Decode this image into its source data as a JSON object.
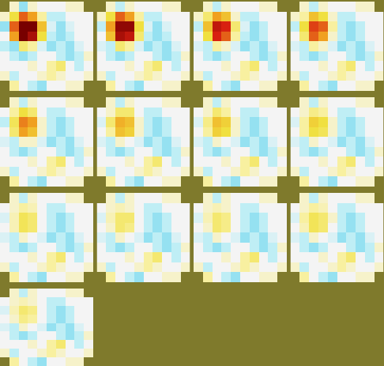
{
  "chart_data": {
    "type": "heatmap",
    "tick_labels": false,
    "zlim": [
      -1,
      1
    ],
    "panels": [
      [
        [
          null,
          0.1,
          -0.3,
          0.1,
          0,
          0,
          0,
          0.1,
          0.1,
          null
        ],
        [
          0.1,
          0.4,
          0.7,
          0.6,
          0.2,
          -0.2,
          -0.2,
          0,
          0,
          0
        ],
        [
          -0.3,
          0.7,
          1.0,
          1.0,
          0.5,
          -0.1,
          -0.3,
          -0.1,
          0,
          0
        ],
        [
          0,
          0.6,
          1.0,
          0.9,
          0.4,
          -0.2,
          -0.3,
          -0.2,
          0,
          0
        ],
        [
          -0.2,
          -0.3,
          0.3,
          0.2,
          -0.1,
          -0.3,
          -0.2,
          -0.3,
          -0.1,
          0
        ],
        [
          0,
          -0.2,
          -0.3,
          -0.2,
          0,
          0,
          -0.2,
          -0.3,
          -0.2,
          0.1
        ],
        [
          0,
          0,
          0,
          0.1,
          0,
          0.2,
          0.3,
          0,
          -0.2,
          0
        ],
        [
          0.1,
          -0.2,
          0,
          0,
          0.1,
          0.2,
          0.1,
          0,
          0,
          0.1
        ],
        [
          null,
          0.2,
          0,
          -0.2,
          -0.3,
          0,
          0,
          0.1,
          0.1,
          null
        ]
      ],
      [
        [
          null,
          0.1,
          -0.2,
          0.1,
          0,
          0,
          0,
          0.1,
          0.1,
          null
        ],
        [
          0.1,
          0.4,
          0.7,
          0.6,
          0.2,
          -0.2,
          -0.2,
          0,
          0,
          0
        ],
        [
          -0.2,
          0.6,
          0.95,
          0.95,
          0.4,
          -0.1,
          -0.3,
          -0.1,
          0,
          0
        ],
        [
          0,
          0.5,
          0.9,
          0.85,
          0.3,
          -0.2,
          -0.3,
          -0.2,
          0,
          0
        ],
        [
          -0.1,
          -0.2,
          0.3,
          0.2,
          -0.1,
          -0.3,
          -0.2,
          -0.3,
          -0.1,
          0
        ],
        [
          0,
          -0.2,
          -0.3,
          -0.2,
          0,
          0,
          -0.2,
          -0.3,
          -0.2,
          0.1
        ],
        [
          0,
          0,
          0,
          0.1,
          0,
          0.2,
          0.3,
          0,
          -0.2,
          0
        ],
        [
          0.1,
          -0.2,
          0,
          0,
          0.1,
          0.2,
          0.1,
          0,
          0,
          0.1
        ],
        [
          null,
          0.2,
          0,
          -0.2,
          -0.3,
          0,
          0,
          0.1,
          0.1,
          null
        ]
      ],
      [
        [
          null,
          0.1,
          -0.2,
          0.1,
          0,
          0,
          0,
          0.1,
          0.1,
          null
        ],
        [
          0.1,
          0.3,
          0.6,
          0.5,
          0.1,
          -0.2,
          -0.2,
          0,
          0,
          0
        ],
        [
          -0.2,
          0.5,
          0.85,
          0.8,
          0.3,
          -0.1,
          -0.3,
          -0.2,
          0,
          0
        ],
        [
          0,
          0.4,
          0.8,
          0.7,
          0.2,
          -0.2,
          -0.3,
          -0.2,
          0,
          0
        ],
        [
          -0.1,
          -0.2,
          0.2,
          0.1,
          -0.1,
          -0.3,
          -0.2,
          -0.3,
          -0.1,
          0
        ],
        [
          0,
          -0.2,
          -0.3,
          -0.2,
          0,
          0,
          -0.2,
          -0.3,
          -0.2,
          0.1
        ],
        [
          0,
          0,
          0,
          0.1,
          0,
          0.2,
          0.3,
          0,
          -0.2,
          0
        ],
        [
          0.1,
          -0.2,
          0,
          0,
          0.1,
          0.2,
          0.1,
          0,
          0,
          0.1
        ],
        [
          null,
          0.2,
          0,
          -0.2,
          -0.3,
          0,
          0,
          0.1,
          0.1,
          null
        ]
      ],
      [
        [
          null,
          0.1,
          -0.2,
          0.1,
          0,
          0,
          0,
          0.1,
          0.1,
          null
        ],
        [
          0.1,
          0.2,
          0.5,
          0.4,
          0.1,
          -0.2,
          -0.2,
          0,
          0,
          0
        ],
        [
          -0.2,
          0.4,
          0.75,
          0.7,
          0.2,
          -0.2,
          -0.3,
          -0.2,
          0,
          0
        ],
        [
          0,
          0.3,
          0.7,
          0.6,
          0.1,
          -0.2,
          -0.3,
          -0.2,
          0,
          0
        ],
        [
          -0.1,
          -0.2,
          0.2,
          0.1,
          -0.1,
          -0.3,
          -0.2,
          -0.3,
          -0.1,
          0
        ],
        [
          0,
          -0.2,
          -0.3,
          -0.2,
          0,
          0,
          -0.2,
          -0.3,
          -0.2,
          0.1
        ],
        [
          0,
          0,
          0,
          0.1,
          0,
          0.2,
          0.3,
          0,
          -0.2,
          0
        ],
        [
          0.1,
          -0.2,
          0,
          0,
          0.1,
          0.2,
          0.1,
          0,
          0,
          0.1
        ],
        [
          null,
          0.2,
          0,
          -0.2,
          -0.3,
          0,
          0,
          0.1,
          0.1,
          null
        ]
      ],
      [
        [
          null,
          0.1,
          -0.2,
          0.1,
          0,
          0,
          0,
          0.1,
          0.1,
          null
        ],
        [
          0,
          0.2,
          0.4,
          0.3,
          0,
          -0.2,
          -0.2,
          0,
          0,
          0
        ],
        [
          -0.2,
          0.35,
          0.65,
          0.6,
          0.1,
          -0.2,
          -0.3,
          -0.2,
          0,
          0
        ],
        [
          0,
          0.3,
          0.6,
          0.5,
          0.1,
          -0.2,
          -0.3,
          -0.2,
          0,
          0
        ],
        [
          -0.1,
          -0.2,
          0.1,
          0.1,
          -0.1,
          -0.3,
          -0.2,
          -0.3,
          -0.1,
          0
        ],
        [
          0,
          -0.2,
          -0.3,
          -0.2,
          0,
          0,
          -0.2,
          -0.3,
          -0.2,
          0.1
        ],
        [
          0,
          0,
          0,
          0.1,
          0,
          0.2,
          0.3,
          0,
          -0.2,
          0
        ],
        [
          0.1,
          -0.2,
          0,
          0,
          0.1,
          0.2,
          0.1,
          0,
          0,
          0.1
        ],
        [
          null,
          0.2,
          0,
          -0.2,
          -0.3,
          0,
          0,
          0.1,
          0.1,
          null
        ]
      ],
      [
        [
          null,
          0.1,
          -0.2,
          0.1,
          0,
          0,
          0,
          0.1,
          0.1,
          null
        ],
        [
          0,
          0.1,
          0.3,
          0.3,
          0,
          -0.2,
          -0.2,
          0,
          0,
          0
        ],
        [
          -0.1,
          0.3,
          0.55,
          0.5,
          0.1,
          -0.2,
          -0.3,
          -0.2,
          0,
          0
        ],
        [
          0,
          0.2,
          0.5,
          0.45,
          0.1,
          -0.2,
          -0.3,
          -0.2,
          0,
          0
        ],
        [
          -0.1,
          -0.2,
          0.1,
          0,
          -0.1,
          -0.3,
          -0.2,
          -0.3,
          -0.1,
          0
        ],
        [
          0,
          -0.2,
          -0.3,
          -0.2,
          0,
          0,
          -0.2,
          -0.3,
          -0.2,
          0.1
        ],
        [
          0,
          0,
          0,
          0.1,
          0,
          0.2,
          0.3,
          0,
          -0.2,
          0
        ],
        [
          0.1,
          -0.2,
          0,
          0,
          0.1,
          0.2,
          0.1,
          0,
          0,
          0.1
        ],
        [
          null,
          0.2,
          0,
          -0.2,
          -0.3,
          0,
          0,
          0.1,
          0.1,
          null
        ]
      ],
      [
        [
          null,
          0.1,
          -0.2,
          0.1,
          0,
          0,
          0,
          0.1,
          0.1,
          null
        ],
        [
          0,
          0.1,
          0.3,
          0.2,
          0,
          -0.2,
          -0.2,
          0,
          0,
          0
        ],
        [
          -0.1,
          0.25,
          0.5,
          0.45,
          0.1,
          -0.2,
          -0.3,
          -0.2,
          0,
          0
        ],
        [
          0,
          0.2,
          0.45,
          0.4,
          0.1,
          -0.2,
          -0.3,
          -0.2,
          0,
          0
        ],
        [
          -0.1,
          -0.2,
          0.1,
          0,
          -0.1,
          -0.3,
          -0.2,
          -0.3,
          -0.1,
          0
        ],
        [
          0,
          -0.2,
          -0.3,
          -0.2,
          0,
          0,
          -0.2,
          -0.3,
          -0.2,
          0.1
        ],
        [
          0,
          0,
          0,
          0.1,
          0,
          0.2,
          0.3,
          0,
          -0.2,
          0
        ],
        [
          0.1,
          -0.2,
          0,
          0,
          0.1,
          0.2,
          0.1,
          0,
          0,
          0.1
        ],
        [
          null,
          0.2,
          0,
          -0.2,
          -0.3,
          0,
          0,
          0.1,
          0.1,
          null
        ]
      ],
      [
        [
          null,
          0.1,
          -0.2,
          0.1,
          0,
          0,
          0,
          0.1,
          0.1,
          null
        ],
        [
          0,
          0.1,
          0.25,
          0.2,
          0,
          -0.2,
          -0.2,
          0,
          0,
          0
        ],
        [
          -0.1,
          0.2,
          0.45,
          0.4,
          0.1,
          -0.2,
          -0.3,
          -0.2,
          0,
          0
        ],
        [
          0,
          0.2,
          0.4,
          0.35,
          0.1,
          -0.2,
          -0.3,
          -0.2,
          0,
          0
        ],
        [
          -0.1,
          -0.2,
          0.1,
          0,
          -0.1,
          -0.3,
          -0.2,
          -0.3,
          -0.1,
          0
        ],
        [
          0,
          -0.2,
          -0.3,
          -0.2,
          0,
          0,
          -0.2,
          -0.3,
          -0.2,
          0.1
        ],
        [
          0,
          0,
          0,
          0.1,
          0,
          0.2,
          0.3,
          0,
          -0.2,
          0
        ],
        [
          0.1,
          -0.2,
          0,
          0,
          0.1,
          0.2,
          0.1,
          0,
          0,
          0.1
        ],
        [
          null,
          0.2,
          0,
          -0.2,
          -0.3,
          0,
          0,
          0.1,
          0.1,
          null
        ]
      ],
      [
        [
          null,
          0.1,
          -0.2,
          0.1,
          0,
          0,
          0,
          0.1,
          0.1,
          null
        ],
        [
          0,
          0.1,
          0.2,
          0.15,
          0,
          -0.2,
          -0.2,
          0,
          0,
          0
        ],
        [
          -0.1,
          0.15,
          0.35,
          0.3,
          0,
          -0.2,
          -0.3,
          -0.2,
          0,
          0
        ],
        [
          0,
          0.15,
          0.35,
          0.3,
          0,
          -0.2,
          -0.3,
          -0.2,
          0,
          0
        ],
        [
          -0.1,
          -0.2,
          0.1,
          0,
          -0.1,
          -0.3,
          -0.2,
          -0.3,
          -0.1,
          0
        ],
        [
          0,
          -0.2,
          -0.3,
          -0.2,
          0,
          0,
          -0.2,
          -0.3,
          -0.2,
          0.1
        ],
        [
          0,
          0,
          0,
          0.1,
          0,
          0.2,
          0.3,
          0,
          -0.2,
          0
        ],
        [
          0.1,
          -0.2,
          0,
          0,
          0.1,
          0.2,
          0.1,
          0,
          0,
          0.1
        ],
        [
          null,
          0.2,
          0,
          -0.2,
          -0.3,
          0,
          0,
          0.1,
          0.1,
          null
        ]
      ],
      [
        [
          null,
          0.1,
          -0.2,
          0.1,
          0,
          0,
          0,
          0.1,
          0.1,
          null
        ],
        [
          0,
          0.1,
          0.15,
          0.1,
          0,
          -0.2,
          -0.2,
          0,
          0,
          0
        ],
        [
          -0.1,
          0.15,
          0.3,
          0.3,
          0,
          -0.2,
          -0.3,
          -0.2,
          0,
          0
        ],
        [
          0,
          0.1,
          0.3,
          0.25,
          0,
          -0.2,
          -0.3,
          -0.2,
          0,
          0
        ],
        [
          -0.1,
          -0.2,
          0.1,
          0,
          -0.1,
          -0.3,
          -0.2,
          -0.3,
          -0.1,
          0
        ],
        [
          0,
          -0.2,
          -0.3,
          -0.2,
          0,
          0,
          -0.2,
          -0.3,
          -0.2,
          0.1
        ],
        [
          0,
          0,
          0,
          0.1,
          0,
          0.2,
          0.3,
          0,
          -0.2,
          0
        ],
        [
          0.1,
          -0.2,
          0,
          0,
          0.1,
          0.2,
          0.1,
          0,
          0,
          0.1
        ],
        [
          null,
          0.2,
          0,
          -0.2,
          -0.3,
          0,
          0,
          0.1,
          0.1,
          null
        ]
      ],
      [
        [
          null,
          0.1,
          -0.2,
          0.1,
          0,
          0,
          0,
          0.1,
          0.1,
          null
        ],
        [
          0,
          0.1,
          0.15,
          0.1,
          0,
          -0.2,
          -0.2,
          0,
          0,
          0
        ],
        [
          -0.1,
          0.15,
          0.3,
          0.25,
          0,
          -0.2,
          -0.3,
          -0.2,
          0,
          0
        ],
        [
          0,
          0.1,
          0.3,
          0.25,
          0,
          -0.2,
          -0.3,
          -0.2,
          0,
          0
        ],
        [
          -0.1,
          -0.2,
          0.1,
          0,
          -0.1,
          -0.3,
          -0.2,
          -0.3,
          -0.1,
          0
        ],
        [
          0,
          -0.2,
          -0.3,
          -0.2,
          0,
          0,
          -0.2,
          -0.3,
          -0.2,
          0.1
        ],
        [
          0,
          0,
          0,
          0.1,
          0,
          0.2,
          0.3,
          0,
          -0.2,
          0
        ],
        [
          0.1,
          -0.2,
          0,
          0,
          0.1,
          0.2,
          0.1,
          0,
          0,
          0.1
        ],
        [
          null,
          0.2,
          0,
          -0.2,
          -0.3,
          0,
          0,
          0.1,
          0.1,
          null
        ]
      ],
      [
        [
          null,
          0.1,
          -0.2,
          0.1,
          0,
          0,
          0,
          0.1,
          0.1,
          null
        ],
        [
          0,
          0.1,
          0.2,
          0.15,
          0,
          -0.2,
          -0.2,
          0,
          0,
          0
        ],
        [
          -0.1,
          0.2,
          0.35,
          0.3,
          0.1,
          -0.2,
          -0.3,
          -0.2,
          0,
          0
        ],
        [
          0,
          0.15,
          0.35,
          0.3,
          0,
          -0.2,
          -0.3,
          -0.2,
          0,
          0
        ],
        [
          -0.1,
          -0.2,
          0.1,
          0,
          -0.1,
          -0.3,
          -0.2,
          -0.3,
          -0.1,
          0
        ],
        [
          0,
          -0.2,
          -0.3,
          -0.2,
          0,
          0,
          -0.2,
          -0.3,
          -0.2,
          0.1
        ],
        [
          0,
          0,
          0,
          0.1,
          0,
          0.2,
          0.3,
          0,
          -0.2,
          0
        ],
        [
          0.1,
          -0.2,
          0,
          0,
          0.1,
          0.2,
          0.1,
          0,
          0,
          0.1
        ],
        [
          null,
          0.2,
          0,
          -0.2,
          -0.3,
          0,
          0,
          0.1,
          0.1,
          null
        ]
      ],
      [
        [
          null,
          0.1,
          -0.2,
          0.1,
          0,
          0,
          0,
          0.1,
          0.1,
          null
        ],
        [
          0,
          0.1,
          0.15,
          0.1,
          0,
          -0.2,
          -0.2,
          0,
          0,
          0
        ],
        [
          -0.1,
          0.15,
          0.3,
          0.25,
          0,
          -0.2,
          -0.3,
          -0.2,
          0,
          0
        ],
        [
          0,
          0.1,
          0.25,
          0.2,
          0,
          -0.2,
          -0.3,
          -0.2,
          0,
          0
        ],
        [
          -0.1,
          -0.2,
          0.1,
          0,
          -0.1,
          -0.3,
          -0.2,
          -0.3,
          -0.1,
          0
        ],
        [
          0,
          -0.2,
          -0.3,
          -0.2,
          0,
          0,
          -0.2,
          -0.3,
          -0.2,
          0.1
        ],
        [
          0,
          0,
          0,
          0.1,
          0,
          0.2,
          0.3,
          0,
          -0.2,
          0
        ],
        [
          0.1,
          -0.2,
          0,
          0,
          0.1,
          0.2,
          0.1,
          0,
          0,
          0.1
        ],
        [
          null,
          0.2,
          0,
          -0.2,
          -0.3,
          0,
          0,
          0.1,
          0.1,
          null
        ]
      ]
    ]
  }
}
